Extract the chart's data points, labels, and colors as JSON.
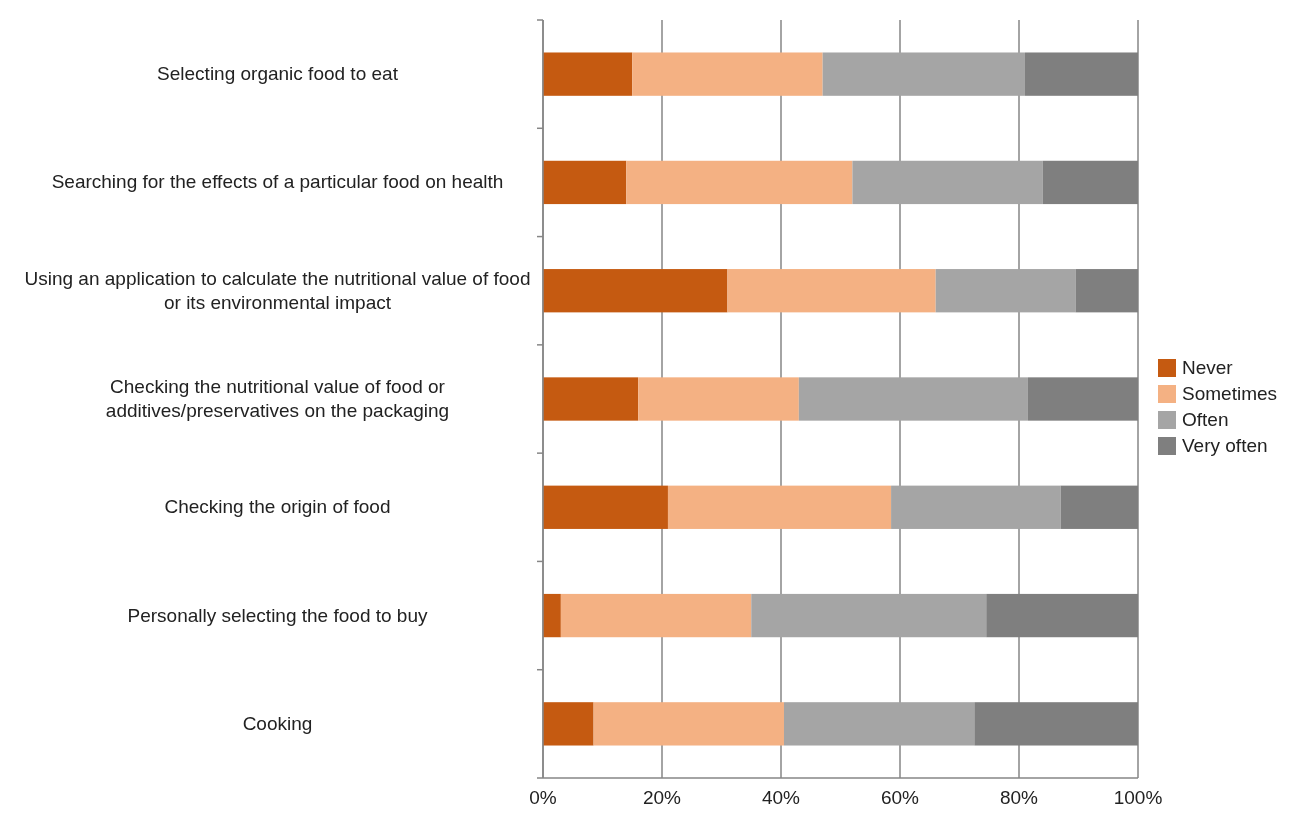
{
  "chart_data": {
    "type": "bar",
    "orientation": "horizontal",
    "stacked": true,
    "categories": [
      "Selecting organic food to eat",
      "Searching for the effects of a particular food on health",
      "Using an application to calculate the nutritional value of food or its environmental impact",
      "Checking the nutritional value of food or additives/preservatives on the packaging",
      "Checking the origin of food",
      "Personally selecting the food to buy",
      "Cooking"
    ],
    "series": [
      {
        "name": "Never",
        "color": "#c55a11",
        "values": [
          15,
          14,
          31,
          16,
          21,
          3,
          8.5
        ]
      },
      {
        "name": "Sometimes",
        "color": "#f4b183",
        "values": [
          32,
          38,
          35,
          27,
          37.5,
          32,
          32
        ]
      },
      {
        "name": "Often",
        "color": "#a5a5a5",
        "values": [
          34,
          32,
          23.5,
          38.5,
          28.5,
          39.5,
          32
        ]
      },
      {
        "name": "Very often",
        "color": "#7f7f7f",
        "values": [
          19,
          16,
          10.5,
          18.5,
          13,
          25.5,
          27.5
        ]
      }
    ],
    "xlim": [
      0,
      100
    ],
    "xticks": [
      {
        "value": 0,
        "label": "0%"
      },
      {
        "value": 20,
        "label": "20%"
      },
      {
        "value": 40,
        "label": "40%"
      },
      {
        "value": 60,
        "label": "60%"
      },
      {
        "value": 80,
        "label": "80%"
      },
      {
        "value": 100,
        "label": "100%"
      }
    ],
    "grid": "x",
    "legend": "right"
  }
}
